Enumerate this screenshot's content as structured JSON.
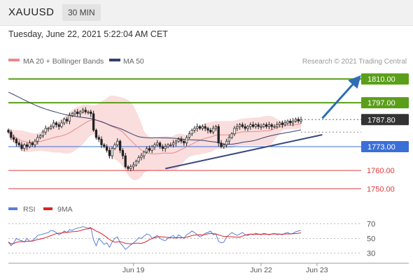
{
  "header": {
    "symbol": "XAUUSD",
    "timeframe": "30 MIN",
    "datetime": "Tuesday, June 22, 2021 5:22:04 AM CET"
  },
  "chart_data": [
    {
      "type": "line",
      "panel": "price",
      "legend": [
        {
          "label": "MA 20 + Bollinger Bands",
          "color": "#e88a8a"
        },
        {
          "label": "MA 50",
          "color": "#34406a"
        }
      ],
      "credit": "Research © 2021 Trading Central",
      "y_range": [
        1744,
        1815
      ],
      "levels": [
        {
          "value": 1810.0,
          "label": "1810.00",
          "style": "resistance",
          "color": "#5a9e1a"
        },
        {
          "value": 1797.0,
          "label": "1797.00",
          "style": "resistance",
          "color": "#5a9e1a"
        },
        {
          "value": 1787.8,
          "label": "1787.80",
          "style": "last-price",
          "color": "#333333"
        },
        {
          "value": 1773.0,
          "label": "1773.00",
          "style": "pivot",
          "color": "#3a6fd8"
        },
        {
          "value": 1760.0,
          "label": "1760.00",
          "style": "support",
          "color": "#dd3b3b"
        },
        {
          "value": 1750.0,
          "label": "1750.00",
          "style": "support",
          "color": "#dd3b3b"
        }
      ],
      "close": [
        1781,
        1778,
        1777,
        1775,
        1774,
        1772,
        1774,
        1773,
        1775,
        1774,
        1776,
        1778,
        1779,
        1781,
        1783,
        1783,
        1784,
        1786,
        1785,
        1784,
        1786,
        1788,
        1787,
        1790,
        1791,
        1792,
        1791,
        1792,
        1793,
        1792,
        1792,
        1791,
        1782,
        1778,
        1777,
        1774,
        1773,
        1771,
        1768,
        1772,
        1774,
        1776,
        1771,
        1768,
        1762,
        1761,
        1762,
        1763,
        1765,
        1767,
        1768,
        1770,
        1772,
        1771,
        1773,
        1774,
        1775,
        1773,
        1772,
        1773,
        1774,
        1774,
        1775,
        1776,
        1777,
        1776,
        1775,
        1778,
        1780,
        1782,
        1783,
        1784,
        1783,
        1784,
        1783,
        1782,
        1781,
        1783,
        1784,
        1775,
        1773,
        1774,
        1776,
        1778,
        1780,
        1783,
        1784,
        1785,
        1784,
        1783,
        1784,
        1785,
        1784,
        1785,
        1784,
        1784,
        1785,
        1784,
        1785,
        1784,
        1784,
        1785,
        1786,
        1785,
        1786,
        1787,
        1786,
        1787,
        1788,
        1787,
        1787.8
      ],
      "trendlines": [
        {
          "name": "support-trendline",
          "from": {
            "i": 59,
            "v": 1761
          },
          "to": {
            "i": 118,
            "v": 1779.5
          }
        },
        {
          "name": "projection-arrow",
          "from": {
            "i": 118,
            "v": 1788.5
          },
          "to": {
            "i": 131,
            "v": 1809.5
          }
        }
      ],
      "x_ticks": [
        {
          "label": "Jun 19",
          "i": 47
        },
        {
          "label": "Jun 22",
          "i": 95
        },
        {
          "label": "Jun 23",
          "i": 116
        }
      ]
    },
    {
      "type": "line",
      "panel": "rsi",
      "legend": [
        {
          "label": "RSI",
          "color": "#5b7fd9"
        },
        {
          "label": "9MA",
          "color": "#dd2222"
        }
      ],
      "y_range": [
        20,
        78
      ],
      "ticks": [
        70,
        50,
        30
      ],
      "rsi": [
        45,
        40,
        44,
        50,
        48,
        47,
        45,
        50,
        46,
        47,
        50,
        54,
        55,
        56,
        57,
        58,
        61,
        60,
        58,
        55,
        57,
        60,
        58,
        62,
        61,
        63,
        64,
        65,
        66,
        65,
        64,
        65,
        48,
        40,
        50,
        46,
        42,
        44,
        38,
        45,
        50,
        52,
        44,
        40,
        35,
        38,
        41,
        44,
        47,
        51,
        50,
        53,
        56,
        55,
        50,
        52,
        54,
        50,
        48,
        47,
        50,
        52,
        54,
        50,
        55,
        52,
        50,
        55,
        57,
        60,
        58,
        55,
        52,
        54,
        57,
        58,
        60,
        55,
        56,
        46,
        44,
        45,
        52,
        55,
        58,
        56,
        54,
        56,
        58,
        55,
        54,
        56,
        55,
        57,
        56,
        55,
        57,
        56,
        55,
        56,
        57,
        55,
        56,
        55,
        57,
        58,
        56,
        57,
        59,
        60,
        61
      ]
    }
  ]
}
